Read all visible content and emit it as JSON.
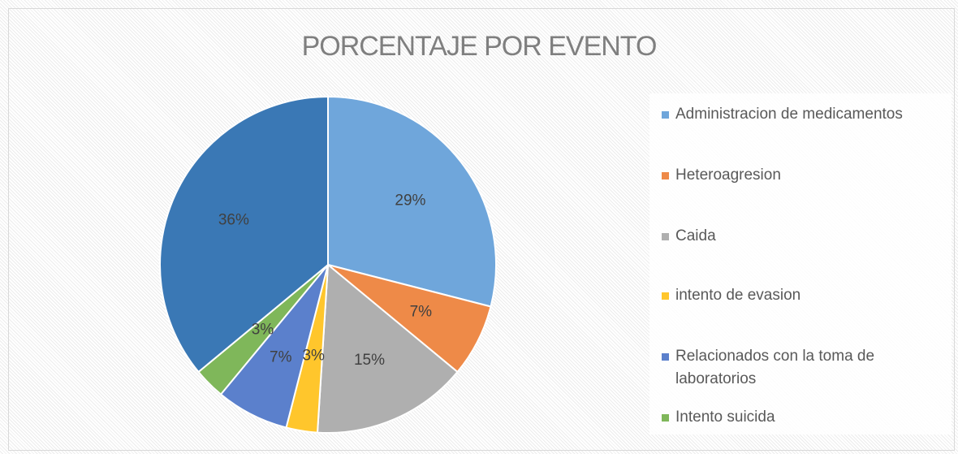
{
  "chart_data": {
    "type": "pie",
    "title": "PORCENTAJE POR EVENTO",
    "categories": [
      "Administracion de medicamentos",
      "Heteroagresion",
      "Caida",
      "intento de evasion",
      "Relacionados con la toma de laboratorios",
      "Intento suicida",
      null
    ],
    "values": [
      29,
      7,
      15,
      3,
      7,
      3,
      36
    ],
    "value_labels": [
      "29%",
      "7%",
      "15%",
      "3%",
      "7%",
      "3%",
      "36%"
    ],
    "colors": [
      "#6fa6db",
      "#ee8a48",
      "#afafaf",
      "#ffc62c",
      "#5b80cc",
      "#7fb75a",
      "#3a78b5"
    ],
    "legend": "right"
  }
}
